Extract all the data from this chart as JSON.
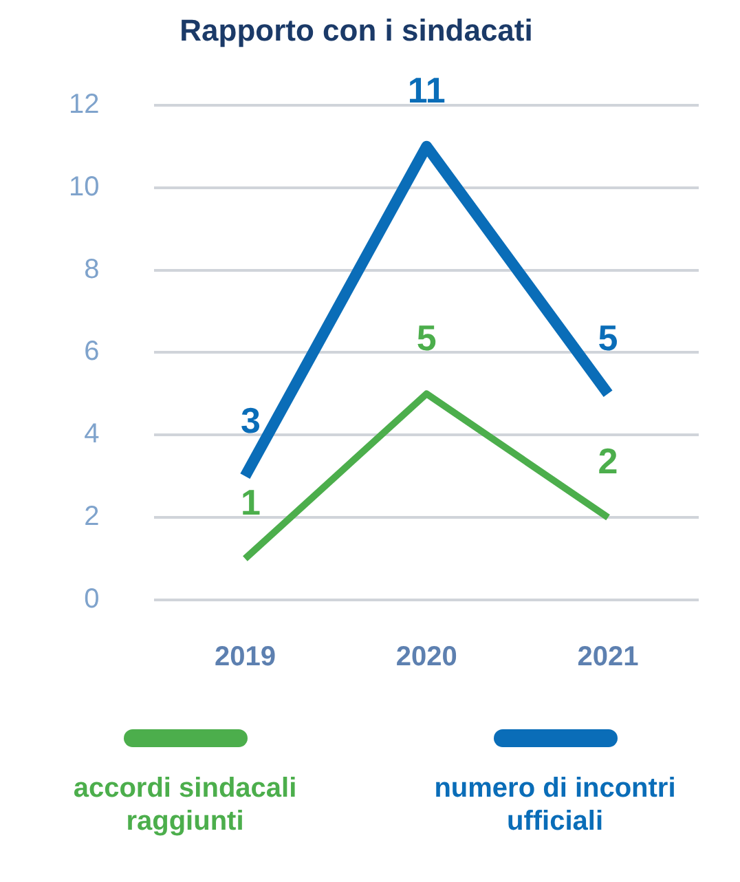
{
  "chart_data": {
    "type": "line",
    "title": "Rapporto con i sindacati",
    "categories": [
      "2019",
      "2020",
      "2021"
    ],
    "series": [
      {
        "name": "accordi sindacali raggiunti",
        "color": "#4cae4c",
        "values": [
          1,
          5,
          2
        ]
      },
      {
        "name": "numero di incontri ufficiali",
        "color": "#0a6db8",
        "values": [
          3,
          11,
          5
        ]
      }
    ],
    "ylim": [
      0,
      12
    ],
    "yticks": [
      0,
      2,
      4,
      6,
      8,
      10,
      12
    ],
    "grid": "y",
    "legend": "bottom",
    "data_labels": true,
    "marker": "none",
    "line_style": "solid"
  }
}
